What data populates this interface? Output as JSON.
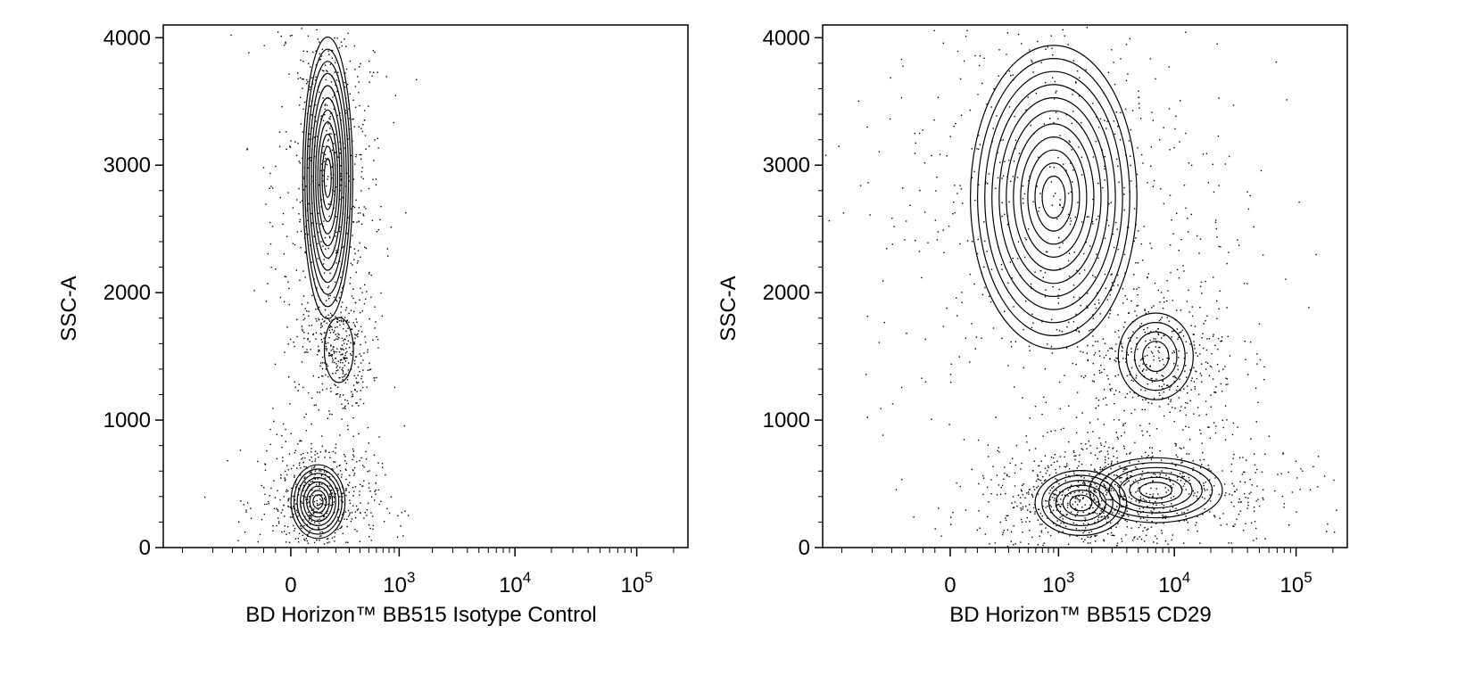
{
  "chart_data": [
    {
      "type": "contour",
      "title": "",
      "xlabel": "BD Horizon™ BB515 Isotype Control",
      "ylabel": "SSC-A",
      "x_scale": "biexponential",
      "x_tick_labels": [
        {
          "value": 0,
          "base": "0",
          "exp": ""
        },
        {
          "value": 1000,
          "base": "10",
          "exp": "3"
        },
        {
          "value": 10000,
          "base": "10",
          "exp": "4"
        },
        {
          "value": 100000,
          "base": "10",
          "exp": "5"
        }
      ],
      "y_ticks": [
        0,
        1000,
        2000,
        3000,
        4000
      ],
      "y_tick_labels": [
        "0",
        "1000",
        "2000",
        "3000",
        "4000"
      ],
      "xlim": [
        -1500,
        262144
      ],
      "ylim": [
        0,
        4100
      ],
      "grid": false,
      "populations": [
        {
          "x_center": 150,
          "y_center": 2900,
          "x_spread": 0.12,
          "y_spread": 650,
          "levels": 11
        },
        {
          "x_center": 220,
          "y_center": 1550,
          "x_spread": 0.07,
          "y_spread": 150,
          "levels": 1
        },
        {
          "x_center": 100,
          "y_center": 360,
          "x_spread": 0.13,
          "y_spread": 170,
          "levels": 8
        }
      ]
    },
    {
      "type": "contour",
      "title": "",
      "xlabel": "BD Horizon™ BB515 CD29",
      "ylabel": "SSC-A",
      "x_scale": "biexponential",
      "x_tick_labels": [
        {
          "value": 0,
          "base": "0",
          "exp": ""
        },
        {
          "value": 1000,
          "base": "10",
          "exp": "3"
        },
        {
          "value": 10000,
          "base": "10",
          "exp": "4"
        },
        {
          "value": 100000,
          "base": "10",
          "exp": "5"
        }
      ],
      "y_ticks": [
        0,
        1000,
        2000,
        3000,
        4000
      ],
      "y_tick_labels": [
        "0",
        "1000",
        "2000",
        "3000",
        "4000"
      ],
      "xlim": [
        -1500,
        262144
      ],
      "ylim": [
        0,
        4100
      ],
      "grid": false,
      "populations": [
        {
          "x_center": 900,
          "y_center": 2750,
          "x_spread": 0.4,
          "y_spread": 700,
          "levels": 11
        },
        {
          "x_center": 7000,
          "y_center": 1500,
          "x_spread": 0.18,
          "y_spread": 200,
          "levels": 4
        },
        {
          "x_center": 1600,
          "y_center": 350,
          "x_spread": 0.22,
          "y_spread": 150,
          "levels": 6
        },
        {
          "x_center": 7000,
          "y_center": 450,
          "x_spread": 0.32,
          "y_spread": 150,
          "levels": 6
        }
      ]
    }
  ]
}
